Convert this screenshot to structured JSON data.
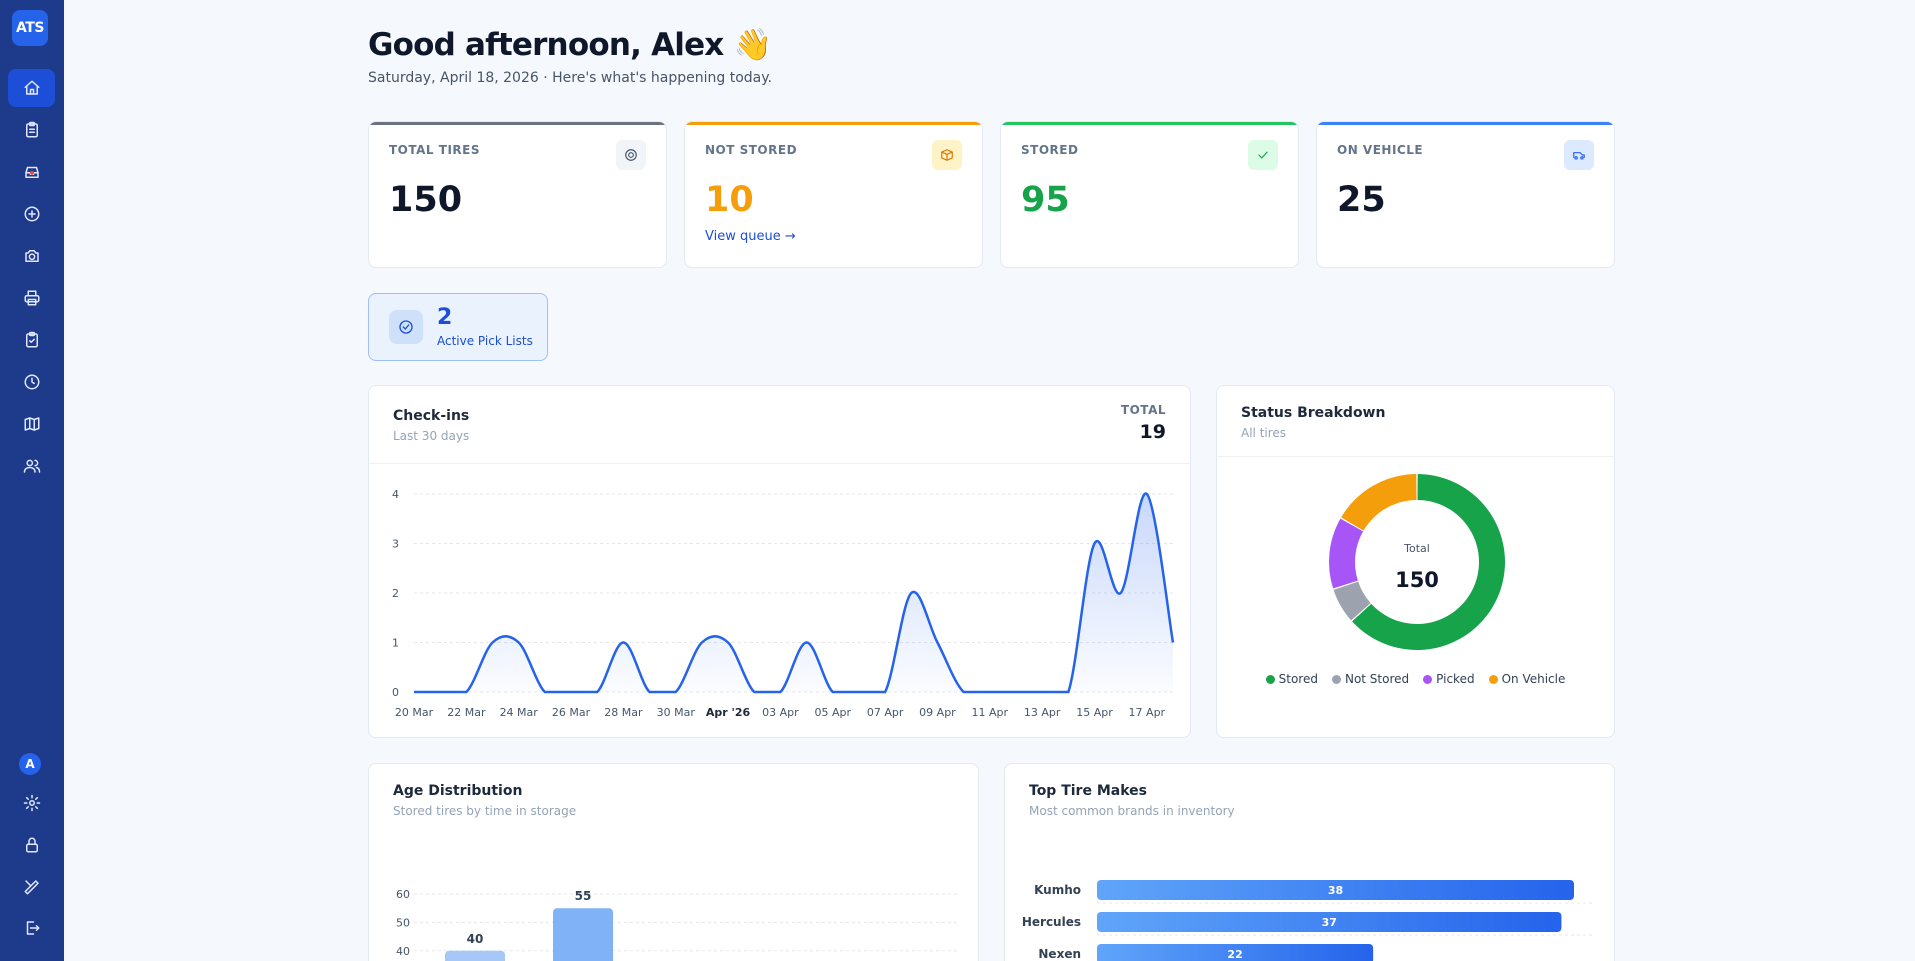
{
  "app": {
    "logo": "ATS"
  },
  "sidebar": {
    "items": [
      {
        "icon": "home-icon",
        "active": true
      },
      {
        "icon": "clipboard-icon"
      },
      {
        "icon": "inbox-icon"
      },
      {
        "icon": "plus-circle-icon"
      },
      {
        "icon": "camera-icon"
      },
      {
        "icon": "printer-icon"
      },
      {
        "icon": "clipboard-check-icon"
      },
      {
        "icon": "clock-icon"
      },
      {
        "icon": "map-icon"
      },
      {
        "icon": "users-icon"
      }
    ],
    "bottom": {
      "avatar_initial": "A",
      "items": [
        {
          "icon": "gear-icon"
        },
        {
          "icon": "lock-icon"
        },
        {
          "icon": "tools-icon"
        },
        {
          "icon": "logout-icon"
        }
      ]
    }
  },
  "header": {
    "greeting": "Good afternoon, Alex 👋",
    "subtitle": "Saturday, April 18, 2026 · Here's what's happening today."
  },
  "stats": [
    {
      "label": "TOTAL TIRES",
      "value": "150",
      "color": "#0f172a",
      "bar": "#6b7280",
      "icon": "target-icon"
    },
    {
      "label": "NOT STORED",
      "value": "10",
      "color": "#f59e0b",
      "bar": "#f59e0b",
      "icon": "box-icon",
      "link": "View queue →"
    },
    {
      "label": "STORED",
      "value": "95",
      "color": "#16a34a",
      "bar": "#22c55e",
      "icon": "check-icon"
    },
    {
      "label": "ON VEHICLE",
      "value": "25",
      "color": "#0f172a",
      "bar": "#3b82f6",
      "icon": "vehicle-icon"
    }
  ],
  "pick_lists": {
    "count": "2",
    "label": "Active Pick Lists"
  },
  "checkins": {
    "title": "Check-ins",
    "subtitle": "Last 30 days",
    "total_label": "TOTAL",
    "total_value": "19"
  },
  "status": {
    "title": "Status Breakdown",
    "subtitle": "All tires",
    "center_label": "Total",
    "center_value": "150"
  },
  "age": {
    "title": "Age Distribution",
    "subtitle": "Stored tires by time in storage"
  },
  "makes": {
    "title": "Top Tire Makes",
    "subtitle": "Most common brands in inventory"
  },
  "chart_data": [
    {
      "type": "area",
      "title": "Check-ins",
      "x": [
        "20 Mar",
        "21 Mar",
        "22 Mar",
        "23 Mar",
        "24 Mar",
        "25 Mar",
        "26 Mar",
        "27 Mar",
        "28 Mar",
        "29 Mar",
        "30 Mar",
        "31 Mar",
        "Apr '26",
        "02 Apr",
        "03 Apr",
        "04 Apr",
        "05 Apr",
        "06 Apr",
        "07 Apr",
        "08 Apr",
        "09 Apr",
        "10 Apr",
        "11 Apr",
        "12 Apr",
        "13 Apr",
        "14 Apr",
        "15 Apr",
        "16 Apr",
        "17 Apr",
        "18 Apr"
      ],
      "values": [
        0,
        0,
        0,
        1,
        1,
        0,
        0,
        0,
        1,
        0,
        0,
        1,
        1,
        0,
        0,
        1,
        0,
        0,
        0,
        2,
        1,
        0,
        0,
        0,
        0,
        0,
        3,
        2,
        4,
        1
      ],
      "tick_labels": [
        "20 Mar",
        "22 Mar",
        "24 Mar",
        "26 Mar",
        "28 Mar",
        "30 Mar",
        "Apr '26",
        "03 Apr",
        "05 Apr",
        "07 Apr",
        "09 Apr",
        "11 Apr",
        "13 Apr",
        "15 Apr",
        "17 Apr"
      ],
      "y_ticks": [
        "0",
        "1",
        "2",
        "3",
        "4"
      ],
      "ylim": [
        0,
        4
      ],
      "grid": true,
      "color": "#2563eb"
    },
    {
      "type": "pie",
      "title": "Status Breakdown",
      "categories": [
        "Stored",
        "Not Stored",
        "Picked",
        "On Vehicle"
      ],
      "values": [
        95,
        10,
        20,
        25
      ],
      "colors": [
        "#16a34a",
        "#9ca3af",
        "#a855f7",
        "#f59e0b"
      ],
      "legend": "bottom"
    },
    {
      "type": "bar",
      "title": "Age Distribution",
      "values": [
        40,
        55
      ],
      "data_labels": [
        "40",
        "55"
      ],
      "y_ticks": [
        "40",
        "50",
        "60"
      ],
      "colors": [
        "#a5c8f8",
        "#7fb2f7"
      ]
    },
    {
      "type": "bar",
      "orientation": "horizontal",
      "title": "Top Tire Makes",
      "categories": [
        "Kumho",
        "Hercules",
        "Nexen"
      ],
      "values": [
        38,
        37,
        22
      ],
      "data_labels": [
        "38",
        "37",
        "22"
      ],
      "color": "#3b82f6"
    }
  ]
}
